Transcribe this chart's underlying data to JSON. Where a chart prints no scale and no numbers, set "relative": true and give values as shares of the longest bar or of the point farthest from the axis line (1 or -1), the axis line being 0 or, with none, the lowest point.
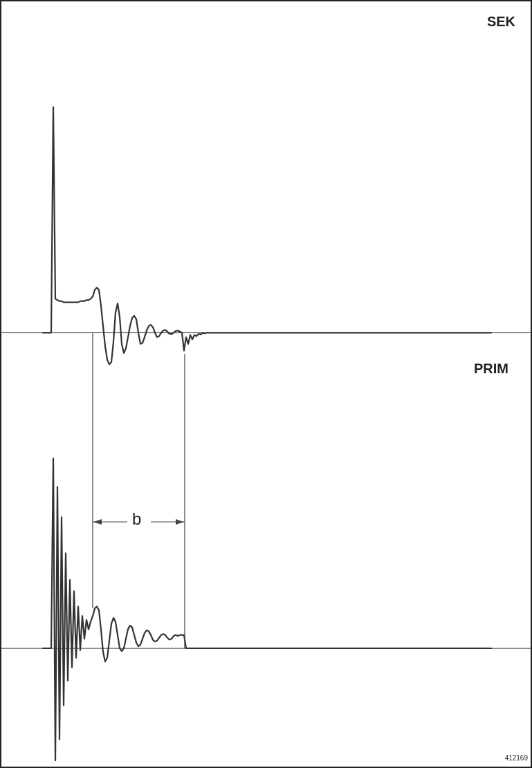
{
  "chart_data": [
    {
      "type": "line",
      "title": "SEK",
      "relative": true,
      "tick_labels": false,
      "color": "#333333",
      "categories": [
        null,
        null,
        null,
        null,
        null,
        null,
        null,
        null,
        null,
        null,
        null,
        null,
        null,
        null,
        null,
        null,
        null,
        null,
        null,
        null,
        null,
        null,
        null,
        null,
        null,
        null,
        null,
        null,
        null,
        null,
        null,
        null,
        null,
        null,
        null,
        null,
        null,
        null,
        null,
        null,
        null,
        null,
        null,
        null,
        null,
        null,
        null,
        null,
        null,
        null,
        null,
        null,
        null,
        null,
        null,
        null,
        null,
        null,
        null,
        null,
        null,
        null,
        null,
        null,
        null,
        null,
        null,
        null,
        null,
        null,
        null,
        null,
        null,
        null,
        null,
        null,
        null,
        null,
        null,
        null,
        null,
        null,
        null,
        null,
        null,
        null,
        null,
        null,
        null,
        null,
        null,
        null,
        null,
        null,
        null,
        null,
        null,
        null,
        null,
        null,
        null,
        null,
        null,
        null,
        null,
        null,
        null,
        null,
        null,
        null,
        null,
        null,
        null,
        null,
        null,
        null,
        null,
        null,
        null,
        null,
        null,
        null,
        null,
        null,
        null,
        null,
        null,
        null,
        null,
        null,
        null,
        null,
        null,
        null,
        null,
        null,
        null,
        null,
        null,
        null,
        null,
        null,
        null,
        null,
        null,
        null,
        null,
        null,
        null,
        null,
        null,
        null,
        null,
        null,
        null,
        null,
        null,
        null,
        null,
        null,
        null,
        null,
        null,
        null,
        null,
        null,
        null,
        null,
        null,
        null,
        null,
        null,
        null,
        null,
        null,
        null,
        null,
        null,
        null,
        null,
        null,
        null,
        null,
        null,
        null,
        null,
        null,
        null,
        null,
        null,
        null,
        null,
        null,
        null,
        null,
        null,
        null,
        null,
        null,
        null,
        null,
        null,
        null,
        null,
        null,
        null,
        null,
        null,
        null,
        null,
        null,
        null,
        null,
        null,
        null,
        null,
        null
      ],
      "values": [
        0,
        0,
        0,
        0,
        0,
        1,
        0.15,
        0.145,
        0.14,
        0.14,
        0.135,
        0.135,
        0.135,
        0.135,
        0.135,
        0.135,
        0.135,
        0.135,
        0.14,
        0.14,
        0.14,
        0.145,
        0.145,
        0.15,
        0.16,
        0.19,
        0.2,
        0.19,
        0.12,
        0.03,
        -0.06,
        -0.12,
        -0.14,
        -0.13,
        -0.04,
        0.09,
        0.13,
        0.07,
        -0.05,
        -0.09,
        -0.07,
        -0.02,
        0.03,
        0.065,
        0.075,
        0.06,
        0,
        -0.05,
        -0.045,
        -0.02,
        0.01,
        0.03,
        0.035,
        0.025,
        0,
        -0.02,
        -0.015,
        0,
        0.01,
        0.012,
        0.005,
        -0.005,
        -0.006,
        0,
        0.008,
        0.01,
        0.005,
        0,
        -0.08,
        -0.02,
        -0.05,
        -0.01,
        -0.03,
        -0.01,
        -0.015,
        -0.005,
        -0.008,
        0,
        -0.003,
        0,
        0,
        0,
        0,
        0,
        0,
        0,
        0,
        0,
        0,
        0,
        0,
        0,
        0,
        0,
        0,
        0,
        0,
        0,
        0,
        0,
        0,
        0,
        0,
        0,
        0,
        0,
        0,
        0,
        0,
        0,
        0,
        0,
        0,
        0,
        0,
        0,
        0,
        0,
        0,
        0,
        0,
        0,
        0,
        0,
        0,
        0,
        0,
        0,
        0,
        0,
        0,
        0,
        0,
        0,
        0,
        0,
        0,
        0,
        0,
        0,
        0,
        0,
        0,
        0,
        0,
        0,
        0,
        0,
        0,
        0,
        0,
        0,
        0,
        0,
        0,
        0,
        0,
        0,
        0,
        0,
        0,
        0,
        0,
        0,
        0,
        0,
        0,
        0,
        0,
        0,
        0,
        0,
        0,
        0,
        0,
        0,
        0,
        0,
        0,
        0,
        0,
        0,
        0,
        0,
        0,
        0,
        0,
        0,
        0,
        0,
        0,
        0,
        0,
        0,
        0,
        0,
        0,
        0,
        0,
        0,
        0,
        0,
        0,
        0,
        0,
        0,
        0,
        0,
        0,
        0,
        0,
        0,
        0,
        0,
        0,
        0,
        0
      ]
    },
    {
      "type": "line",
      "title": "PRIM",
      "relative": true,
      "tick_labels": false,
      "color": "#333333",
      "annotations": [
        "b",
        "412169"
      ],
      "categories": [
        null,
        null,
        null,
        null,
        null,
        null,
        null,
        null,
        null,
        null,
        null,
        null,
        null,
        null,
        null,
        null,
        null,
        null,
        null,
        null,
        null,
        null,
        null,
        null,
        null,
        null,
        null,
        null,
        null,
        null,
        null,
        null,
        null,
        null,
        null,
        null,
        null,
        null,
        null,
        null,
        null,
        null,
        null,
        null,
        null,
        null,
        null,
        null,
        null,
        null,
        null,
        null,
        null,
        null,
        null,
        null,
        null,
        null,
        null,
        null,
        null,
        null,
        null,
        null,
        null,
        null,
        null,
        null,
        null,
        null,
        null,
        null,
        null,
        null,
        null,
        null,
        null,
        null,
        null,
        null,
        null,
        null,
        null,
        null,
        null,
        null,
        null,
        null,
        null,
        null,
        null,
        null,
        null,
        null,
        null,
        null,
        null,
        null,
        null,
        null,
        null,
        null,
        null,
        null,
        null,
        null,
        null,
        null,
        null,
        null,
        null,
        null,
        null,
        null,
        null,
        null,
        null,
        null,
        null,
        null,
        null,
        null,
        null,
        null,
        null,
        null,
        null,
        null,
        null,
        null,
        null,
        null,
        null,
        null,
        null,
        null,
        null,
        null,
        null,
        null,
        null,
        null,
        null,
        null,
        null,
        null,
        null,
        null,
        null,
        null,
        null,
        null,
        null,
        null,
        null,
        null,
        null,
        null,
        null,
        null,
        null,
        null,
        null,
        null,
        null,
        null,
        null,
        null,
        null,
        null,
        null,
        null,
        null,
        null,
        null,
        null,
        null,
        null,
        null,
        null,
        null,
        null,
        null,
        null,
        null,
        null,
        null,
        null,
        null,
        null,
        null,
        null,
        null,
        null,
        null,
        null,
        null,
        null,
        null,
        null,
        null,
        null,
        null,
        null,
        null,
        null,
        null,
        null,
        null,
        null,
        null,
        null,
        null,
        null,
        null,
        null,
        null
      ],
      "values": [
        0,
        0,
        0,
        0,
        0,
        1,
        -0.59,
        0.85,
        -0.48,
        0.69,
        -0.3,
        0.5,
        -0.17,
        0.36,
        -0.1,
        0.3,
        -0.05,
        0.22,
        -0.01,
        0.17,
        0.05,
        0.15,
        0.1,
        0.14,
        0.17,
        0.21,
        0.22,
        0.2,
        0.1,
        -0.02,
        -0.07,
        -0.05,
        0.04,
        0.13,
        0.16,
        0.14,
        0.07,
        0,
        -0.015,
        0,
        0.05,
        0.1,
        0.12,
        0.11,
        0.07,
        0.03,
        0.01,
        0.02,
        0.05,
        0.08,
        0.095,
        0.09,
        0.07,
        0.045,
        0.035,
        0.04,
        0.055,
        0.07,
        0.075,
        0.07,
        0.055,
        0.045,
        0.05,
        0.065,
        0.07,
        0.065,
        0.07,
        0.07,
        0.07,
        0,
        0,
        0,
        0,
        0,
        0,
        0,
        0,
        0,
        0,
        0,
        0,
        0,
        0,
        0,
        0,
        0,
        0,
        0,
        0,
        0,
        0,
        0,
        0,
        0,
        0,
        0,
        0,
        0,
        0,
        0,
        0,
        0,
        0,
        0,
        0,
        0,
        0,
        0,
        0,
        0,
        0,
        0,
        0,
        0,
        0,
        0,
        0,
        0,
        0,
        0,
        0,
        0,
        0,
        0,
        0,
        0,
        0,
        0,
        0,
        0,
        0,
        0,
        0,
        0,
        0,
        0,
        0,
        0,
        0,
        0,
        0,
        0,
        0,
        0,
        0,
        0,
        0,
        0,
        0,
        0,
        0,
        0,
        0,
        0,
        0,
        0,
        0,
        0,
        0,
        0,
        0,
        0,
        0,
        0,
        0,
        0,
        0,
        0,
        0,
        0,
        0,
        0,
        0,
        0,
        0,
        0,
        0,
        0,
        0,
        0,
        0,
        0,
        0,
        0,
        0,
        0,
        0,
        0,
        0,
        0,
        0,
        0,
        0,
        0,
        0,
        0,
        0,
        0,
        0,
        0,
        0,
        0,
        0,
        0,
        0,
        0,
        0,
        0,
        0,
        0,
        0,
        0,
        0,
        0,
        0,
        0,
        0
      ]
    }
  ]
}
